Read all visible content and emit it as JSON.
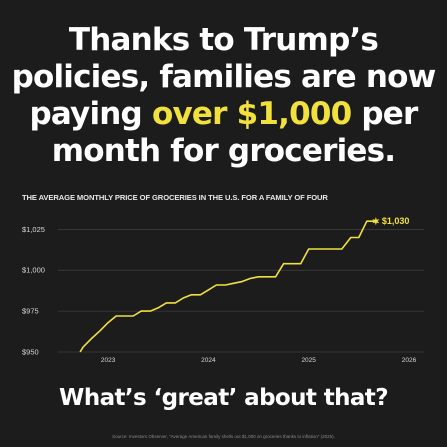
{
  "headline": {
    "line1": "Thanks to Trump’s",
    "line2": "policies, families are now",
    "line3_pre": "paying ",
    "line3_highlight": "over $1,000",
    "line3_post": " per",
    "line4": "month for groceries."
  },
  "question": "What’s ‘great’ about that?",
  "source": "Source: Investors Observer, “Average American family shells out $1,000 on groceries thanks to inflation” (2025).",
  "colors": {
    "background": "#1c1c1c",
    "accent": "#f2e13c",
    "grid": "#4a4a4a",
    "text": "#ffffff"
  },
  "chart_data": {
    "type": "line",
    "title": "THE AVERAGE MONTHLY PRICE OF GROCERIES IN THE U.S. FOR A FAMILY OF FOUR",
    "xlabel": "",
    "ylabel": "",
    "xlim": [
      2022.5,
      2026.15
    ],
    "ylim": [
      950,
      1035
    ],
    "x_ticks": [
      2023,
      2024,
      2025,
      2026
    ],
    "x_tick_labels": [
      "2023",
      "2024",
      "2025",
      "2026"
    ],
    "y_ticks": [
      950,
      975,
      1000,
      1025
    ],
    "y_tick_labels": [
      "$950",
      "$975",
      "$1,000",
      "$1,025"
    ],
    "grid": true,
    "series": [
      {
        "x": [
          2022.72,
          2022.75,
          2022.83,
          2022.92,
          2023.0,
          2023.08,
          2023.17,
          2023.25,
          2023.33,
          2023.42,
          2023.5,
          2023.58,
          2023.67,
          2023.75,
          2023.83,
          2023.92,
          2024.0,
          2024.08,
          2024.17,
          2024.25,
          2024.33,
          2024.42,
          2024.5,
          2024.58,
          2024.67,
          2024.75,
          2024.83,
          2024.92,
          2025.0,
          2025.08,
          2025.17,
          2025.25,
          2025.33,
          2025.42,
          2025.5,
          2025.58,
          2025.67
        ],
        "y": [
          950,
          953,
          958,
          963,
          968,
          972,
          972,
          972,
          975,
          975,
          977,
          980,
          980,
          983,
          985,
          985,
          988,
          991,
          991,
          992,
          993,
          995,
          996,
          996,
          996,
          1004,
          1004,
          1004,
          1013,
          1013,
          1013,
          1013,
          1013,
          1020,
          1020,
          1030,
          1030
        ]
      }
    ],
    "annotations": [
      {
        "label": "$1,030",
        "x": 2025.67,
        "y": 1030
      }
    ]
  }
}
